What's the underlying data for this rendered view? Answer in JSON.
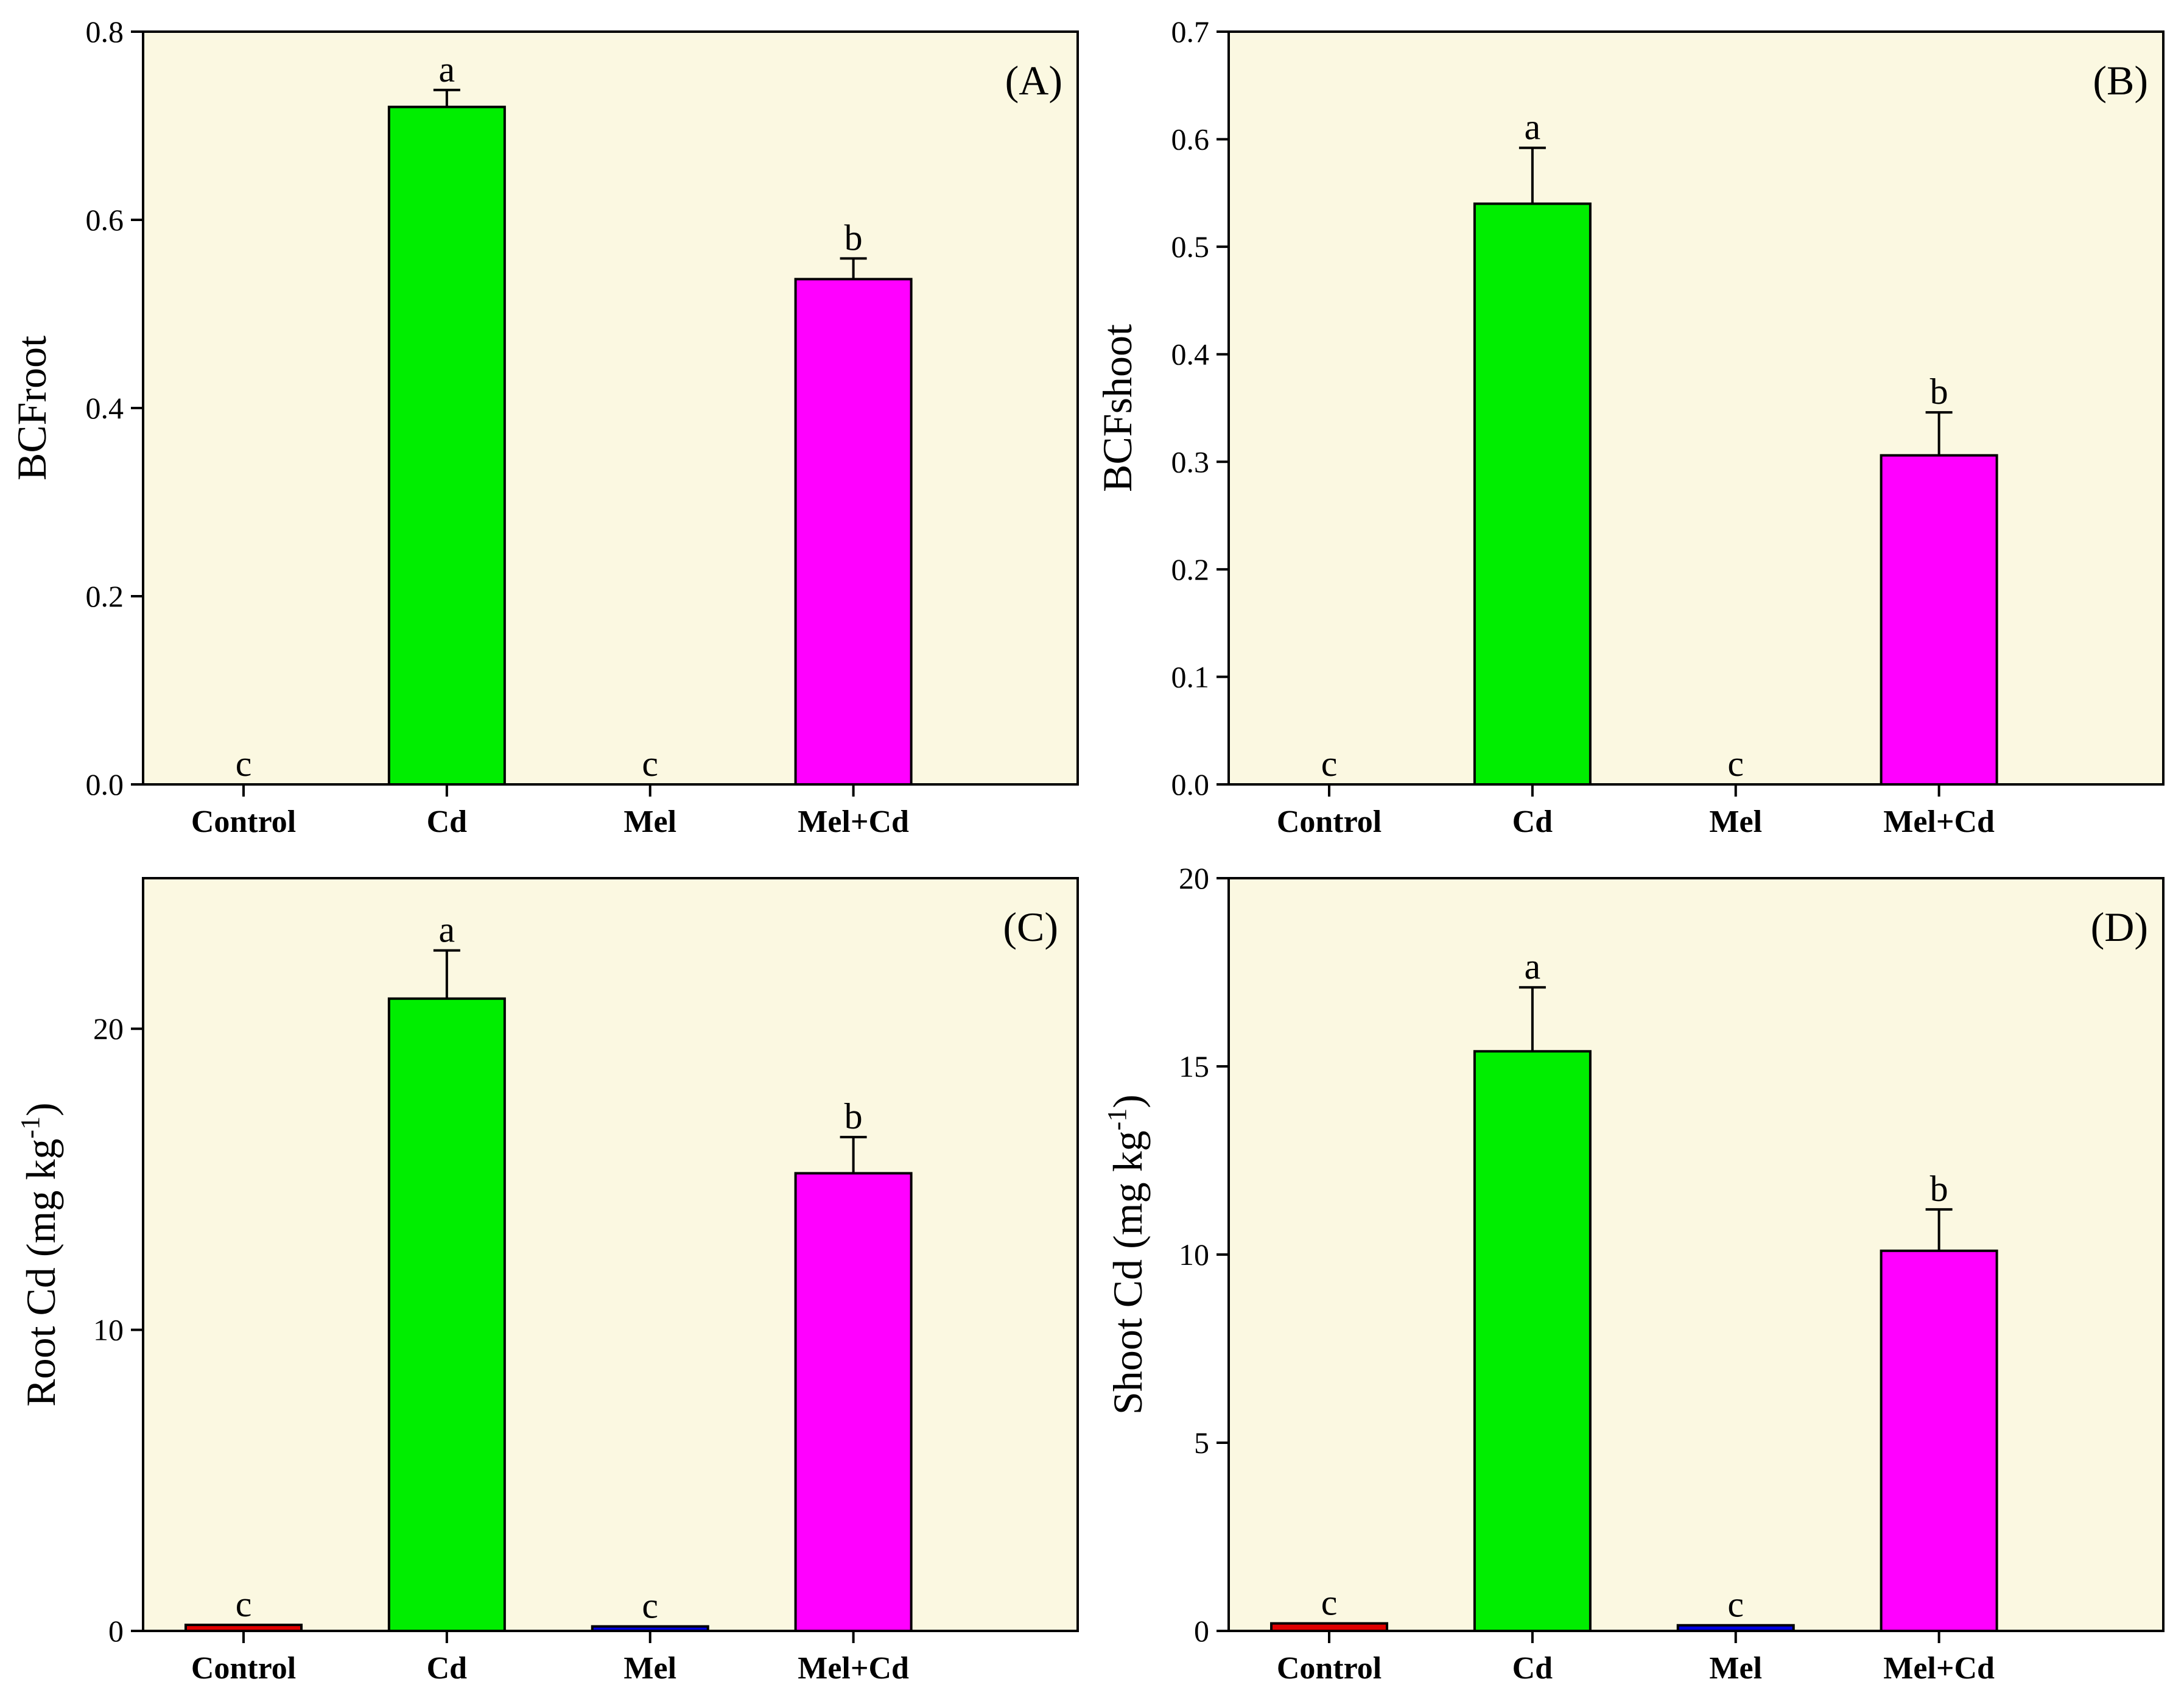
{
  "chart_data": [
    {
      "type": "bar",
      "panel": "(A)",
      "ylabel": "BCFroot",
      "ylabel_sup": "",
      "categories": [
        "Control",
        "Cd",
        "Mel",
        "Mel+Cd"
      ],
      "values": [
        0,
        0.72,
        0,
        0.537
      ],
      "errors": [
        0,
        0.018,
        0,
        0.022
      ],
      "significance": [
        "c",
        "a",
        "c",
        "b"
      ],
      "colors": [
        "#e00000",
        "#00ee00",
        "#0000e0",
        "#ff00ff"
      ],
      "ylim": [
        0,
        0.8
      ],
      "yticks": [
        0.0,
        0.2,
        0.4,
        0.6,
        0.8
      ],
      "ytick_labels": [
        "0.0",
        "0.2",
        "0.4",
        "0.6",
        "0.8"
      ]
    },
    {
      "type": "bar",
      "panel": "(B)",
      "ylabel": "BCFshoot",
      "ylabel_sup": "",
      "categories": [
        "Control",
        "Cd",
        "Mel",
        "Mel+Cd"
      ],
      "values": [
        0,
        0.54,
        0,
        0.306
      ],
      "errors": [
        0,
        0.052,
        0,
        0.04
      ],
      "significance": [
        "c",
        "a",
        "c",
        "b"
      ],
      "colors": [
        "#e00000",
        "#00ee00",
        "#0000e0",
        "#ff00ff"
      ],
      "ylim": [
        0,
        0.7
      ],
      "yticks": [
        0.0,
        0.1,
        0.2,
        0.3,
        0.4,
        0.5,
        0.6,
        0.7
      ],
      "ytick_labels": [
        "0.0",
        "0.1",
        "0.2",
        "0.3",
        "0.4",
        "0.5",
        "0.6",
        "0.7"
      ]
    },
    {
      "type": "bar",
      "panel": "(C)",
      "ylabel": "Root Cd (mg kg",
      "ylabel_sup": "-1",
      "ylabel_end": ")",
      "categories": [
        "Control",
        "Cd",
        "Mel",
        "Mel+Cd"
      ],
      "values": [
        0.2,
        21.0,
        0.15,
        15.2
      ],
      "errors": [
        0,
        1.6,
        0,
        1.2
      ],
      "significance": [
        "c",
        "a",
        "c",
        "b"
      ],
      "colors": [
        "#e00000",
        "#00ee00",
        "#0000e0",
        "#ff00ff"
      ],
      "ylim": [
        0,
        25
      ],
      "yticks": [
        0,
        10,
        20
      ],
      "ytick_labels": [
        "0",
        "10",
        "20"
      ]
    },
    {
      "type": "bar",
      "panel": "(D)",
      "ylabel": "Shoot Cd (mg kg",
      "ylabel_sup": "-1",
      "ylabel_end": ")",
      "categories": [
        "Control",
        "Cd",
        "Mel",
        "Mel+Cd"
      ],
      "values": [
        0.2,
        15.4,
        0.15,
        10.1
      ],
      "errors": [
        0,
        1.7,
        0,
        1.1
      ],
      "significance": [
        "c",
        "a",
        "c",
        "b"
      ],
      "colors": [
        "#e00000",
        "#00ee00",
        "#0000e0",
        "#ff00ff"
      ],
      "ylim": [
        0,
        20
      ],
      "yticks": [
        0,
        5,
        10,
        15,
        20
      ],
      "ytick_labels": [
        "0",
        "5",
        "10",
        "15",
        "20"
      ]
    }
  ],
  "colors": {
    "plot_background": "#fbf8e1",
    "axis": "#000000"
  }
}
